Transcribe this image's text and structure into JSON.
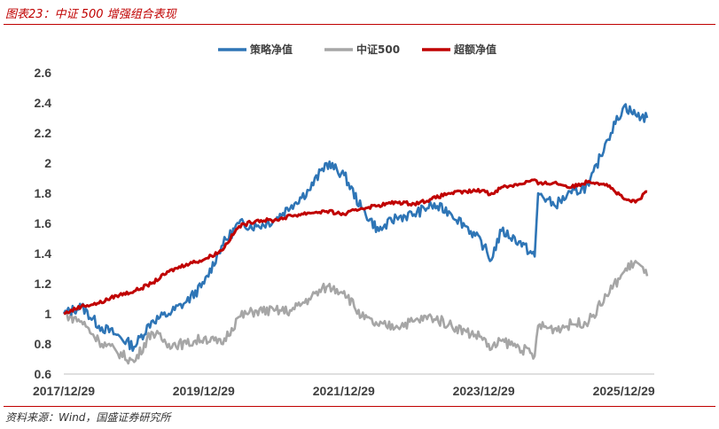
{
  "figure": {
    "title": "图表23：中证 500 增强组合表现",
    "source": "资料来源：Wind，国盛证券研究所"
  },
  "colors": {
    "title": "#c00000",
    "strategy": "#2e75b6",
    "index": "#a6a6a6",
    "excess": "#c00000"
  },
  "chart_data": {
    "type": "line",
    "title": "",
    "xlabel": "",
    "ylabel": "",
    "ylim": [
      0.6,
      2.6
    ],
    "yticks": [
      "0.6",
      "0.8",
      "1",
      "1.2",
      "1.4",
      "1.6",
      "1.8",
      "2",
      "2.2",
      "2.4",
      "2.6"
    ],
    "xticks": [
      "2017/12/29",
      "2019/12/29",
      "2021/12/29",
      "2023/12/29",
      "2025/12/29"
    ],
    "x_range": [
      "2017/12/29",
      "2026/04/30"
    ],
    "grid": false,
    "legend": "top",
    "series": [
      {
        "name": "策略净值",
        "color": "#2e75b6",
        "points": [
          [
            "2017/12/29",
            1.0
          ],
          [
            "2018/03/31",
            1.05
          ],
          [
            "2018/06/30",
            0.92
          ],
          [
            "2018/09/30",
            0.86
          ],
          [
            "2018/12/31",
            0.78
          ],
          [
            "2019/03/31",
            0.95
          ],
          [
            "2019/06/30",
            1.0
          ],
          [
            "2019/09/30",
            1.08
          ],
          [
            "2019/12/31",
            1.2
          ],
          [
            "2020/03/31",
            1.45
          ],
          [
            "2020/06/30",
            1.6
          ],
          [
            "2020/09/30",
            1.58
          ],
          [
            "2020/12/31",
            1.62
          ],
          [
            "2021/03/31",
            1.72
          ],
          [
            "2021/06/30",
            1.82
          ],
          [
            "2021/09/30",
            2.0
          ],
          [
            "2021/12/31",
            1.92
          ],
          [
            "2022/03/31",
            1.7
          ],
          [
            "2022/06/30",
            1.55
          ],
          [
            "2022/09/30",
            1.64
          ],
          [
            "2022/12/31",
            1.66
          ],
          [
            "2023/03/31",
            1.72
          ],
          [
            "2023/06/30",
            1.68
          ],
          [
            "2023/09/30",
            1.58
          ],
          [
            "2023/12/31",
            1.45
          ],
          [
            "2024/01/31",
            1.35
          ],
          [
            "2024/03/31",
            1.55
          ],
          [
            "2024/06/30",
            1.48
          ],
          [
            "2024/09/20",
            1.38
          ],
          [
            "2024/10/08",
            1.8
          ],
          [
            "2024/12/31",
            1.72
          ],
          [
            "2025/03/31",
            1.8
          ],
          [
            "2025/06/30",
            1.85
          ],
          [
            "2025/09/30",
            2.15
          ],
          [
            "2025/12/31",
            2.38
          ],
          [
            "2026/02/28",
            2.32
          ],
          [
            "2026/04/30",
            2.3
          ]
        ]
      },
      {
        "name": "中证500",
        "color": "#a6a6a6",
        "points": [
          [
            "2017/12/29",
            1.0
          ],
          [
            "2018/03/31",
            0.95
          ],
          [
            "2018/06/30",
            0.82
          ],
          [
            "2018/09/30",
            0.75
          ],
          [
            "2018/12/31",
            0.68
          ],
          [
            "2019/03/31",
            0.88
          ],
          [
            "2019/06/30",
            0.8
          ],
          [
            "2019/09/30",
            0.8
          ],
          [
            "2019/12/31",
            0.84
          ],
          [
            "2020/03/31",
            0.8
          ],
          [
            "2020/06/30",
            0.98
          ],
          [
            "2020/09/30",
            1.02
          ],
          [
            "2020/12/31",
            1.02
          ],
          [
            "2021/03/31",
            1.02
          ],
          [
            "2021/06/30",
            1.1
          ],
          [
            "2021/09/30",
            1.18
          ],
          [
            "2021/12/31",
            1.15
          ],
          [
            "2022/03/31",
            0.98
          ],
          [
            "2022/06/30",
            0.92
          ],
          [
            "2022/09/30",
            0.92
          ],
          [
            "2022/12/31",
            0.95
          ],
          [
            "2023/03/31",
            0.98
          ],
          [
            "2023/06/30",
            0.93
          ],
          [
            "2023/09/30",
            0.88
          ],
          [
            "2023/12/31",
            0.84
          ],
          [
            "2024/01/31",
            0.76
          ],
          [
            "2024/03/31",
            0.82
          ],
          [
            "2024/06/30",
            0.78
          ],
          [
            "2024/09/20",
            0.72
          ],
          [
            "2024/10/08",
            0.92
          ],
          [
            "2024/12/31",
            0.9
          ],
          [
            "2025/03/31",
            0.93
          ],
          [
            "2025/06/30",
            0.95
          ],
          [
            "2025/09/30",
            1.12
          ],
          [
            "2025/12/31",
            1.28
          ],
          [
            "2026/02/28",
            1.35
          ],
          [
            "2026/04/30",
            1.25
          ]
        ]
      },
      {
        "name": "超额净值",
        "color": "#c00000",
        "points": [
          [
            "2017/12/29",
            1.0
          ],
          [
            "2018/03/31",
            1.05
          ],
          [
            "2018/06/30",
            1.07
          ],
          [
            "2018/09/30",
            1.12
          ],
          [
            "2018/12/31",
            1.15
          ],
          [
            "2019/03/31",
            1.2
          ],
          [
            "2019/06/30",
            1.28
          ],
          [
            "2019/09/30",
            1.33
          ],
          [
            "2019/12/31",
            1.36
          ],
          [
            "2020/03/31",
            1.42
          ],
          [
            "2020/06/30",
            1.58
          ],
          [
            "2020/09/30",
            1.62
          ],
          [
            "2020/12/31",
            1.62
          ],
          [
            "2021/03/31",
            1.65
          ],
          [
            "2021/06/30",
            1.67
          ],
          [
            "2021/09/30",
            1.68
          ],
          [
            "2021/12/31",
            1.66
          ],
          [
            "2022/03/31",
            1.7
          ],
          [
            "2022/06/30",
            1.72
          ],
          [
            "2022/09/30",
            1.74
          ],
          [
            "2022/12/31",
            1.73
          ],
          [
            "2023/03/31",
            1.76
          ],
          [
            "2023/06/30",
            1.8
          ],
          [
            "2023/09/30",
            1.81
          ],
          [
            "2023/12/31",
            1.82
          ],
          [
            "2024/01/31",
            1.79
          ],
          [
            "2024/03/31",
            1.84
          ],
          [
            "2024/06/30",
            1.86
          ],
          [
            "2024/09/20",
            1.89
          ],
          [
            "2024/10/08",
            1.86
          ],
          [
            "2024/12/31",
            1.87
          ],
          [
            "2025/03/31",
            1.84
          ],
          [
            "2025/06/30",
            1.88
          ],
          [
            "2025/09/30",
            1.86
          ],
          [
            "2025/12/31",
            1.76
          ],
          [
            "2026/02/28",
            1.74
          ],
          [
            "2026/04/30",
            1.81
          ]
        ]
      }
    ]
  }
}
